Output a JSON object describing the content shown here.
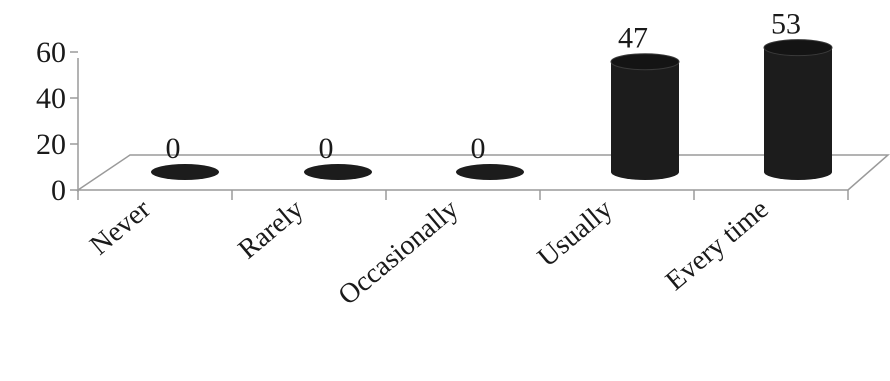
{
  "chart_data": {
    "type": "bar",
    "categories": [
      "Never",
      "Rarely",
      "Occasionally",
      "Usually",
      "Every time"
    ],
    "values": [
      0,
      0,
      0,
      47,
      53
    ],
    "data_labels": [
      "0",
      "0",
      "0",
      "47",
      "53"
    ],
    "title": "",
    "xlabel": "",
    "ylabel": "",
    "ylim": [
      0,
      60
    ],
    "yticks": [
      "0",
      "20",
      "40",
      "60"
    ],
    "grid": false,
    "legend": "none",
    "style": "3d-cylinder",
    "colors": {
      "bar": "#1c1c1c",
      "floor": "#9a9a9a",
      "text": "#1a1a1a"
    }
  }
}
